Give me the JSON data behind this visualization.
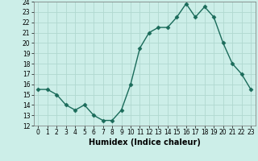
{
  "x": [
    0,
    1,
    2,
    3,
    4,
    5,
    6,
    7,
    8,
    9,
    10,
    11,
    12,
    13,
    14,
    15,
    16,
    17,
    18,
    19,
    20,
    21,
    22,
    23
  ],
  "y": [
    15.5,
    15.5,
    15,
    14,
    13.5,
    14,
    13,
    12.5,
    12.5,
    13.5,
    16,
    19.5,
    21,
    21.5,
    21.5,
    22.5,
    23.8,
    22.5,
    23.5,
    22.5,
    20,
    18,
    17,
    15.5
  ],
  "line_color": "#1a6b5a",
  "marker_color": "#1a6b5a",
  "bg_color": "#cceee8",
  "grid_color": "#b0d8d0",
  "xlabel": "Humidex (Indice chaleur)",
  "ylim": [
    12,
    24
  ],
  "xlim_min": -0.5,
  "xlim_max": 23.5,
  "yticks": [
    12,
    13,
    14,
    15,
    16,
    17,
    18,
    19,
    20,
    21,
    22,
    23,
    24
  ],
  "xticks": [
    0,
    1,
    2,
    3,
    4,
    5,
    6,
    7,
    8,
    9,
    10,
    11,
    12,
    13,
    14,
    15,
    16,
    17,
    18,
    19,
    20,
    21,
    22,
    23
  ],
  "tick_fontsize": 5.5,
  "xlabel_fontsize": 7,
  "marker_size": 2.5,
  "line_width": 1.0
}
